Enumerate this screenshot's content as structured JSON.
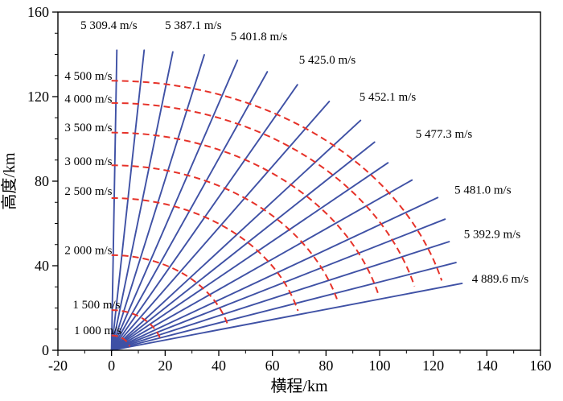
{
  "chart_data": {
    "type": "line",
    "title": "",
    "xlabel": "横程/km",
    "ylabel": "高度/km",
    "xlim": [
      -20,
      160
    ],
    "ylim": [
      0,
      160
    ],
    "x_ticks": [
      -20,
      0,
      20,
      40,
      60,
      80,
      100,
      120,
      140,
      160
    ],
    "y_ticks": [
      0,
      40,
      80,
      120,
      160
    ],
    "minor_tick_step_km": 10,
    "grid": false,
    "legend": "none",
    "colors": {
      "trajectory_line": "#3f51a5",
      "velocity_contour": "#e63229",
      "axis": "#000000",
      "background": "#ffffff"
    },
    "trajectories": [
      {
        "angle_from_vertical_deg": 0.8,
        "length_km": 142.0,
        "label": "5 309.4 m/s",
        "label_x": -1,
        "label_y": 154
      },
      {
        "angle_from_vertical_deg": 4.9,
        "length_km": 142.5
      },
      {
        "angle_from_vertical_deg": 9.2,
        "length_km": 143.0,
        "label": "5 387.1 m/s",
        "label_x": 30.5,
        "label_y": 154
      },
      {
        "angle_from_vertical_deg": 13.9,
        "length_km": 144.0
      },
      {
        "angle_from_vertical_deg": 18.9,
        "length_km": 145.0,
        "label": "5 401.8 m/s",
        "label_x": 55,
        "label_y": 148.5
      },
      {
        "angle_from_vertical_deg": 23.8,
        "length_km": 144.0
      },
      {
        "angle_from_vertical_deg": 28.9,
        "length_km": 143.5,
        "label": "5 425.0 m/s",
        "label_x": 80.5,
        "label_y": 137.5
      },
      {
        "angle_from_vertical_deg": 34.6,
        "length_km": 143.0
      },
      {
        "angle_from_vertical_deg": 40.5,
        "length_km": 143.0,
        "label": "5 452.1 m/s",
        "label_x": 103,
        "label_y": 120
      },
      {
        "angle_from_vertical_deg": 44.9,
        "length_km": 139.0
      },
      {
        "angle_from_vertical_deg": 49.3,
        "length_km": 136.0,
        "label": "5 477.3 m/s",
        "label_x": 124,
        "label_y": 102.5
      },
      {
        "angle_from_vertical_deg": 54.3,
        "length_km": 138.0
      },
      {
        "angle_from_vertical_deg": 59.3,
        "length_km": 141.5,
        "label": "5 481.0 m/s",
        "label_x": 138.5,
        "label_y": 76
      },
      {
        "angle_from_vertical_deg": 63.5,
        "length_km": 139.0
      },
      {
        "angle_from_vertical_deg": 67.8,
        "length_km": 136.0,
        "label": "5 392.9 m/s",
        "label_x": 142,
        "label_y": 55
      },
      {
        "angle_from_vertical_deg": 72.1,
        "length_km": 135.0
      },
      {
        "angle_from_vertical_deg": 76.4,
        "length_km": 134.5,
        "label": "4 889.6 m/s",
        "label_x": 145,
        "label_y": 34
      }
    ],
    "velocity_contours": [
      {
        "label": "1 000 m/s",
        "radius_km": 7,
        "label_x": -14,
        "label_y": 9.5
      },
      {
        "label": "1 500 m/s",
        "radius_km": 19,
        "label_x": -14.5,
        "label_y": 21.7
      },
      {
        "label": "2 000 m/s",
        "radius_km": 45,
        "label_x": -17.5,
        "label_y": 47.5
      },
      {
        "label": "2 500 m/s",
        "radius_km": 72,
        "label_x": -17.5,
        "label_y": 75.5
      },
      {
        "label": "3 000 m/s",
        "radius_km": 87.5,
        "label_x": -17.5,
        "label_y": 89.5
      },
      {
        "label": "3 500 m/s",
        "radius_km": 103,
        "label_x": -17.5,
        "label_y": 105.5
      },
      {
        "label": "4 000 m/s",
        "radius_km": 117,
        "label_x": -17.5,
        "label_y": 119
      },
      {
        "label": "4 500 m/s",
        "radius_km": 127.5,
        "label_x": -17.5,
        "label_y": 130
      }
    ]
  }
}
